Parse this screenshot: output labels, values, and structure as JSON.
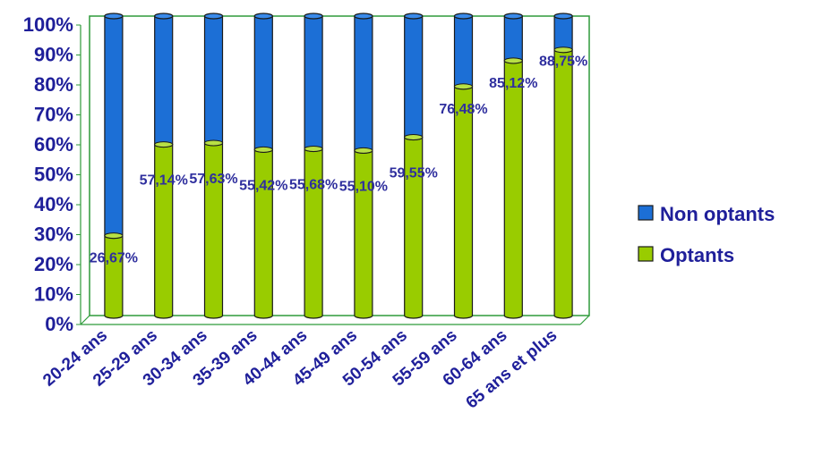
{
  "colors": {
    "optants": "#99cc00",
    "optants_top": "#b8e045",
    "non_optants": "#1c6fd6",
    "non_optants_top": "#3a8aea",
    "frame": "#2e9a3a",
    "text": "#1f1f9a",
    "data_label": "#2f2f9e"
  },
  "chart_data": {
    "type": "bar",
    "stacked": true,
    "percent": true,
    "categories": [
      "20-24 ans",
      "25-29 ans",
      "30-34 ans",
      "35-39 ans",
      "40-44 ans",
      "45-49 ans",
      "50-54 ans",
      "55-59 ans",
      "60-64 ans",
      "65 ans et plus"
    ],
    "series": [
      {
        "name": "Optants",
        "values": [
          26.67,
          57.14,
          57.63,
          55.42,
          55.68,
          55.1,
          59.55,
          76.48,
          85.12,
          88.75
        ]
      },
      {
        "name": "Non optants",
        "values": [
          73.33,
          42.86,
          42.37,
          44.58,
          44.32,
          44.9,
          40.45,
          23.52,
          14.88,
          11.25
        ]
      }
    ],
    "data_labels": [
      "26,67%",
      "57,14%",
      "57,63%",
      "55,42%",
      "55,68%",
      "55,10%",
      "59,55%",
      "76,48%",
      "85,12%",
      "88,75%"
    ],
    "yticks": [
      "0%",
      "10%",
      "20%",
      "30%",
      "40%",
      "50%",
      "60%",
      "70%",
      "80%",
      "90%",
      "100%"
    ],
    "ylim": [
      0,
      100
    ],
    "grid": false,
    "legend": {
      "position": "right",
      "items": [
        {
          "label": "Non optants",
          "color": "#1c6fd6"
        },
        {
          "label": "Optants",
          "color": "#99cc00"
        }
      ]
    }
  }
}
